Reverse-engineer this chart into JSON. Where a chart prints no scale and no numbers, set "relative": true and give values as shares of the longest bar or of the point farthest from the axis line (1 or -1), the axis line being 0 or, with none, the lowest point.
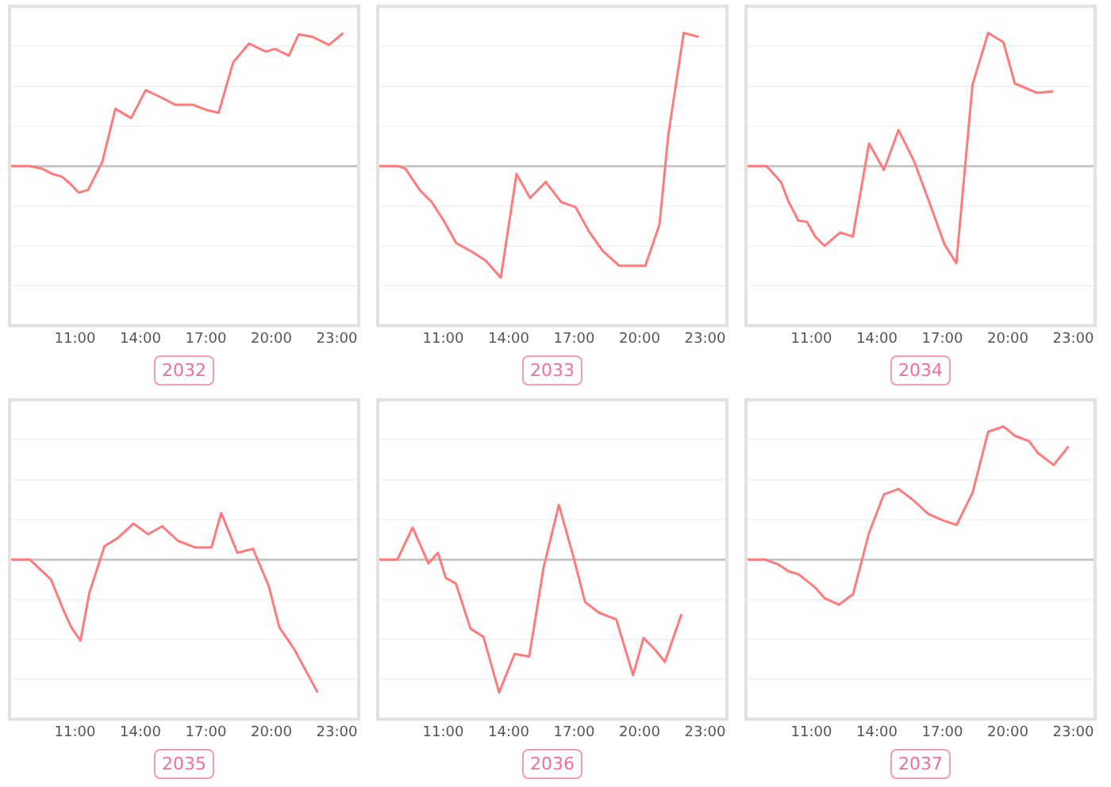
{
  "chart_data": [
    {
      "type": "line",
      "title": "2032",
      "color": "#ff7b7b",
      "relative": true,
      "grid": "y",
      "tick_labels": "x",
      "xlim": [
        8,
        24
      ],
      "xticks": [
        {
          "value": 11,
          "label": "11:00"
        },
        {
          "value": 14,
          "label": "14:00"
        },
        {
          "value": 17,
          "label": "17:00"
        },
        {
          "value": 20,
          "label": "20:00"
        },
        {
          "value": 23,
          "label": "23:00"
        }
      ],
      "x": [
        8.0,
        8.9,
        9.5,
        9.97,
        10.4,
        10.76,
        11.17,
        11.6,
        12.25,
        12.85,
        13.57,
        14.24,
        14.89,
        15.6,
        16.4,
        17.05,
        17.58,
        18.25,
        18.97,
        19.74,
        20.17,
        20.8,
        21.25,
        21.9,
        22.64,
        23.29
      ],
      "values": [
        0,
        0,
        -0.02,
        -0.06,
        -0.08,
        -0.13,
        -0.2,
        -0.18,
        0.03,
        0.43,
        0.36,
        0.57,
        0.52,
        0.46,
        0.46,
        0.42,
        0.4,
        0.78,
        0.92,
        0.86,
        0.88,
        0.83,
        0.99,
        0.97,
        0.91,
        1
      ]
    },
    {
      "type": "line",
      "title": "2033",
      "color": "#ff7b7b",
      "relative": true,
      "grid": "y",
      "tick_labels": "x",
      "xlim": [
        8,
        24
      ],
      "xticks": [
        {
          "value": 11,
          "label": "11:00"
        },
        {
          "value": 14,
          "label": "14:00"
        },
        {
          "value": 17,
          "label": "17:00"
        },
        {
          "value": 20,
          "label": "20:00"
        },
        {
          "value": 23,
          "label": "23:00"
        }
      ],
      "x": [
        8.07,
        8.91,
        9.27,
        9.92,
        10.47,
        11.02,
        11.6,
        12.27,
        12.94,
        13.64,
        14.36,
        14.98,
        15.7,
        16.4,
        17.07,
        17.67,
        18.32,
        19.06,
        20.26,
        20.91,
        21.32,
        22.02,
        22.71
      ],
      "values": [
        0,
        0,
        -0.02,
        -0.18,
        -0.27,
        -0.41,
        -0.58,
        -0.64,
        -0.71,
        -0.84,
        -0.06,
        -0.24,
        -0.12,
        -0.27,
        -0.31,
        -0.49,
        -0.64,
        -0.75,
        -0.75,
        -0.44,
        0.24,
        1,
        0.97
      ]
    },
    {
      "type": "line",
      "title": "2034",
      "color": "#ff7b7b",
      "relative": true,
      "grid": "y",
      "tick_labels": "x",
      "xlim": [
        8,
        24
      ],
      "xticks": [
        {
          "value": 11,
          "label": "11:00"
        },
        {
          "value": 14,
          "label": "14:00"
        },
        {
          "value": 17,
          "label": "17:00"
        },
        {
          "value": 20,
          "label": "20:00"
        },
        {
          "value": 23,
          "label": "23:00"
        }
      ],
      "x": [
        8.0,
        8.94,
        9.6,
        9.96,
        10.4,
        10.8,
        11.17,
        11.6,
        12.31,
        12.9,
        13.64,
        14.32,
        14.99,
        15.72,
        16.44,
        17.1,
        17.64,
        18.38,
        19.1,
        19.8,
        20.32,
        21.33,
        22.07
      ],
      "values": [
        0,
        0,
        -0.12,
        -0.27,
        -0.41,
        -0.42,
        -0.53,
        -0.6,
        -0.5,
        -0.53,
        0.17,
        -0.03,
        0.27,
        0.03,
        -0.29,
        -0.59,
        -0.73,
        0.61,
        1,
        0.93,
        0.62,
        0.55,
        0.56
      ]
    },
    {
      "type": "line",
      "title": "2035",
      "color": "#ff7b7b",
      "relative": true,
      "grid": "y",
      "tick_labels": "x",
      "xlim": [
        8,
        24
      ],
      "xticks": [
        {
          "value": 11,
          "label": "11:00"
        },
        {
          "value": 14,
          "label": "14:00"
        },
        {
          "value": 17,
          "label": "17:00"
        },
        {
          "value": 20,
          "label": "20:00"
        },
        {
          "value": 23,
          "label": "23:00"
        }
      ],
      "x": [
        8.0,
        8.92,
        9.9,
        10.47,
        10.83,
        11.25,
        11.66,
        12.35,
        12.95,
        13.68,
        14.35,
        15.0,
        15.72,
        16.52,
        17.25,
        17.7,
        18.44,
        19.16,
        19.88,
        20.36,
        21.03,
        22.12
      ],
      "values": [
        0,
        0,
        -0.15,
        -0.38,
        -0.51,
        -0.61,
        -0.25,
        0.1,
        0.16,
        0.27,
        0.19,
        0.25,
        0.14,
        0.09,
        0.09,
        0.35,
        0.05,
        0.08,
        -0.2,
        -0.51,
        -0.67,
        -1
      ]
    },
    {
      "type": "line",
      "title": "2036",
      "color": "#ff7b7b",
      "relative": true,
      "grid": "y",
      "tick_labels": "x",
      "xlim": [
        8,
        24
      ],
      "xticks": [
        {
          "value": 11,
          "label": "11:00"
        },
        {
          "value": 14,
          "label": "14:00"
        },
        {
          "value": 17,
          "label": "17:00"
        },
        {
          "value": 20,
          "label": "20:00"
        },
        {
          "value": 23,
          "label": "23:00"
        }
      ],
      "x": [
        8.0,
        8.9,
        9.6,
        10.32,
        10.76,
        11.12,
        11.58,
        12.25,
        12.84,
        13.56,
        14.27,
        14.94,
        15.6,
        16.3,
        16.95,
        17.5,
        18.14,
        18.93,
        19.7,
        20.18,
        20.72,
        21.16,
        21.92
      ],
      "values": [
        0,
        0,
        0.24,
        -0.03,
        0.05,
        -0.14,
        -0.18,
        -0.52,
        -0.58,
        -1,
        -0.71,
        -0.73,
        -0.06,
        0.41,
        0.03,
        -0.32,
        -0.4,
        -0.45,
        -0.87,
        -0.59,
        -0.68,
        -0.77,
        -0.41
      ]
    },
    {
      "type": "line",
      "title": "2037",
      "color": "#ff7b7b",
      "relative": true,
      "grid": "y",
      "tick_labels": "x",
      "xlim": [
        8,
        24
      ],
      "xticks": [
        {
          "value": 11,
          "label": "11:00"
        },
        {
          "value": 14,
          "label": "14:00"
        },
        {
          "value": 17,
          "label": "17:00"
        },
        {
          "value": 20,
          "label": "20:00"
        },
        {
          "value": 23,
          "label": "23:00"
        }
      ],
      "x": [
        8.0,
        8.87,
        9.52,
        9.96,
        10.4,
        11.17,
        11.6,
        12.26,
        12.91,
        13.64,
        14.32,
        14.99,
        15.64,
        16.37,
        17.09,
        17.65,
        18.38,
        19.1,
        19.81,
        20.32,
        20.97,
        21.38,
        22.1,
        22.78
      ],
      "values": [
        0,
        0,
        -0.04,
        -0.09,
        -0.11,
        -0.21,
        -0.29,
        -0.34,
        -0.26,
        0.2,
        0.49,
        0.53,
        0.45,
        0.34,
        0.29,
        0.26,
        0.5,
        0.96,
        1,
        0.93,
        0.89,
        0.8,
        0.71,
        0.85
      ]
    }
  ]
}
